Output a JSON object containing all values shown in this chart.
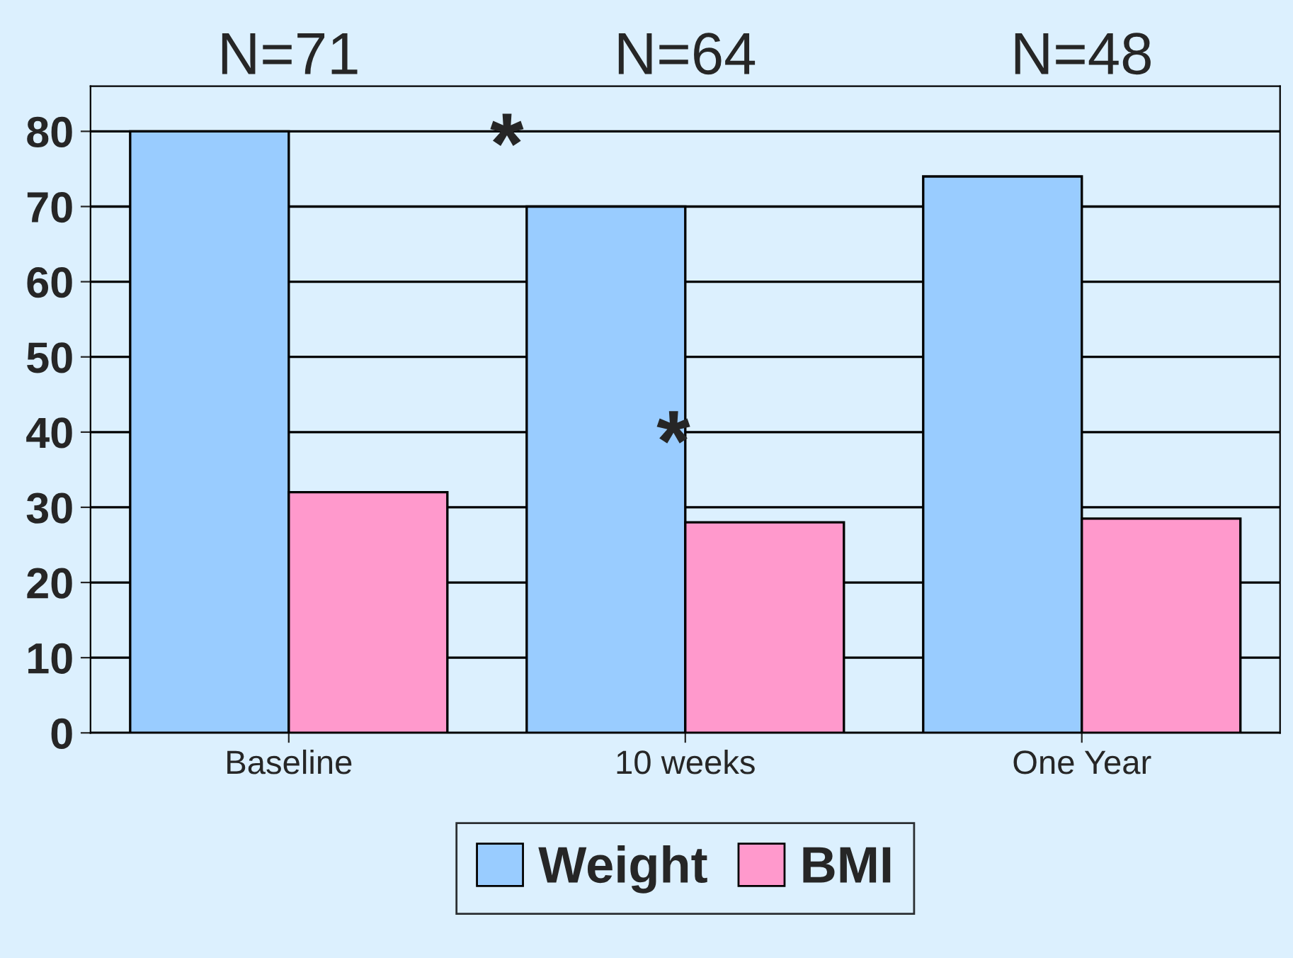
{
  "chart_data": {
    "type": "bar",
    "categories": [
      "Baseline",
      "10 weeks",
      "One Year"
    ],
    "series": [
      {
        "name": "Weight",
        "color": "#99ccff",
        "values": [
          80,
          70,
          74
        ]
      },
      {
        "name": "BMI",
        "color": "#ff99cc",
        "values": [
          32,
          28,
          28.5
        ]
      }
    ],
    "ylim": [
      0,
      86
    ],
    "yticks": [
      0,
      10,
      20,
      30,
      40,
      50,
      60,
      70,
      80
    ],
    "grid": "y",
    "legend": "bottom",
    "annotations": [
      "N=71",
      "N=64",
      "N=48",
      "*",
      "*"
    ]
  }
}
